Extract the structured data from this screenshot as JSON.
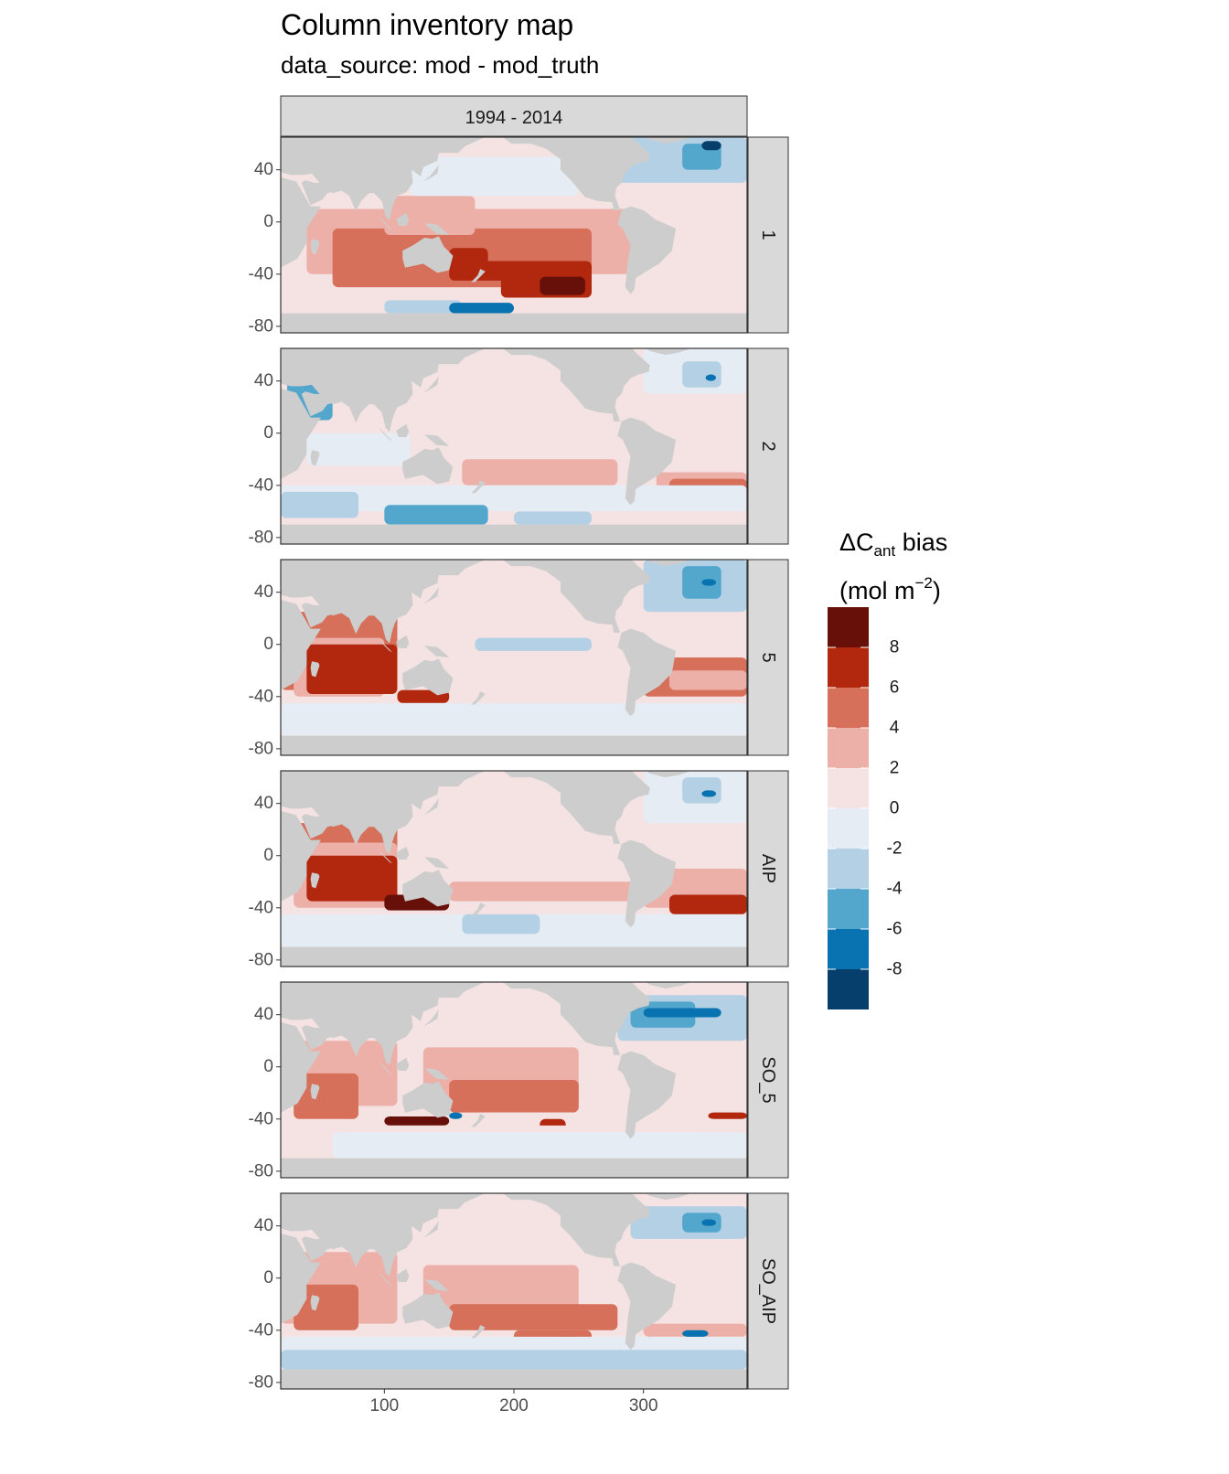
{
  "title": "Column inventory map",
  "subtitle": "data_source: mod - mod_truth",
  "strip_top": "1994 - 2014",
  "panels": [
    {
      "label": "1",
      "pattern": 1
    },
    {
      "label": "2",
      "pattern": 2
    },
    {
      "label": "5",
      "pattern": 3
    },
    {
      "label": "AIP",
      "pattern": 4
    },
    {
      "label": "SO_5",
      "pattern": 5
    },
    {
      "label": "SO_AIP",
      "pattern": 6
    }
  ],
  "legend": {
    "title_main": "ΔC",
    "title_sub": "ant",
    "title_rest": " bias",
    "unit_open": "(mol m",
    "unit_sup": "−2",
    "unit_close": ")",
    "bins": [
      {
        "color": "#67100a"
      },
      {
        "color": "#b2280f"
      },
      {
        "color": "#d6705a"
      },
      {
        "color": "#ecb0a8"
      },
      {
        "color": "#f5e3e3"
      },
      {
        "color": "#e6ecf3"
      },
      {
        "color": "#b3d0e5"
      },
      {
        "color": "#53a6cc"
      },
      {
        "color": "#0972b0"
      },
      {
        "color": "#063f6b"
      }
    ],
    "labels": [
      "8",
      "6",
      "4",
      "2",
      "0",
      "-2",
      "-4",
      "-6",
      "-8"
    ]
  },
  "chart_data": {
    "type": "heatmap",
    "title": "Column inventory map",
    "subtitle": "data_source: mod - mod_truth",
    "facet_column": [
      "1994 - 2014"
    ],
    "facet_rows": [
      "1",
      "2",
      "5",
      "AIP",
      "SO_5",
      "SO_AIP"
    ],
    "x_ticks": [
      100,
      200,
      300
    ],
    "xlim": [
      20,
      380
    ],
    "y_ticks": [
      40,
      0,
      -40,
      -80
    ],
    "ylim": [
      -85,
      65
    ],
    "land_color": "#cdcdcd",
    "legend_breaks": [
      8,
      6,
      4,
      2,
      0,
      -2,
      -4,
      -6,
      -8
    ]
  }
}
